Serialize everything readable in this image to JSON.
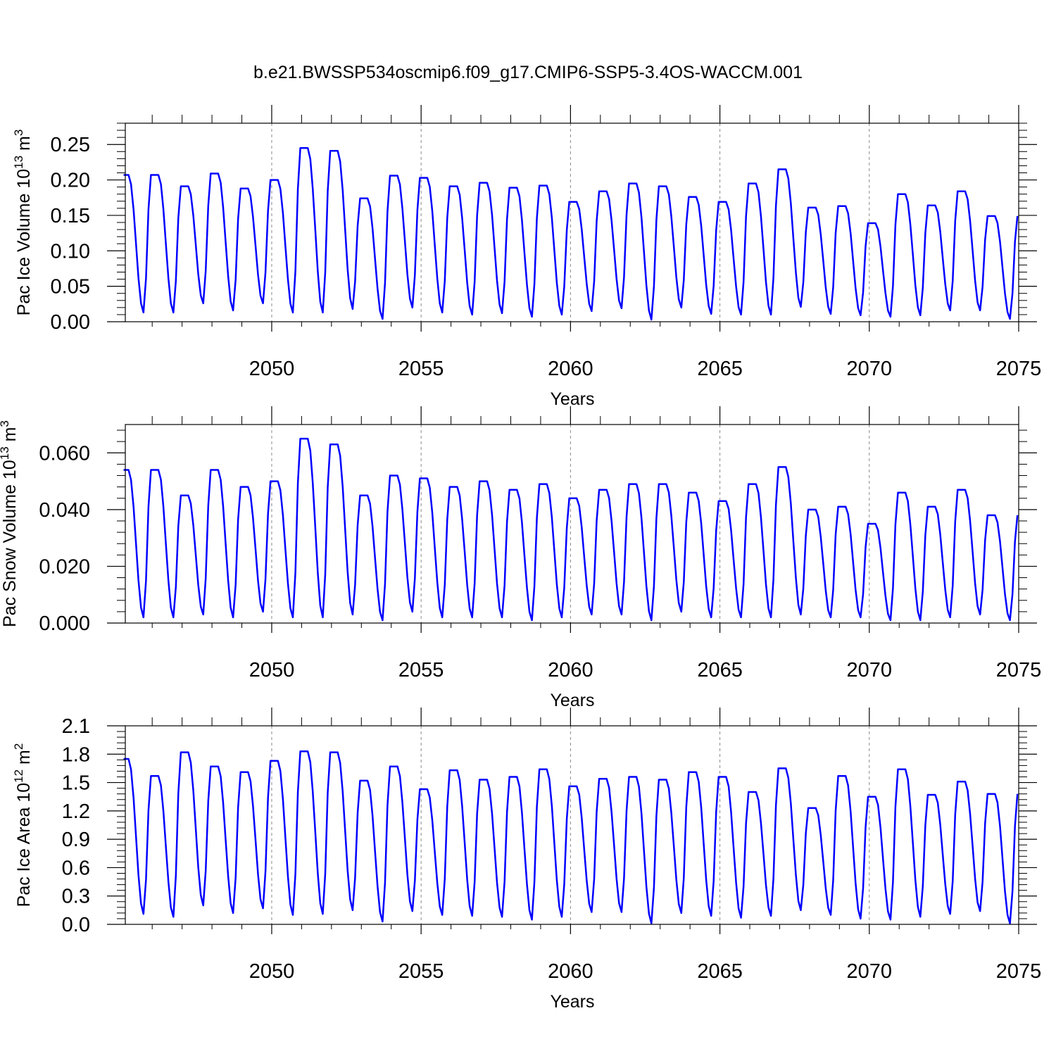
{
  "title": "b.e21.BWSSP534oscmip6.f09_g17.CMIP6-SSP5-3.4OS-WACCM.001",
  "chart_data": [
    {
      "type": "line",
      "ylabel": "Pac Ice Volume 10",
      "ylabel_exp": "13",
      "ylabel_unit": " m",
      "ylabel_unit_exp": "3",
      "xlabel": "Years",
      "xlim": [
        2045.1,
        2075.0
      ],
      "ylim": [
        0.0,
        0.28
      ],
      "yticks": [
        0.0,
        0.05,
        0.1,
        0.15,
        0.2,
        0.25
      ],
      "ytick_labels": [
        "0.00",
        "0.05",
        "0.10",
        "0.15",
        "0.20",
        "0.25"
      ],
      "xticks": [
        2050,
        2055,
        2060,
        2065,
        2070,
        2075
      ],
      "xtick_labels": [
        "2050",
        "2055",
        "2060",
        "2065",
        "2070",
        "2075"
      ],
      "grid": "dashed vertical at major x ticks",
      "color": "#0000ff",
      "series": [
        {
          "name": "Pac Ice Volume",
          "annual_max": [
            0.207,
            0.207,
            0.191,
            0.209,
            0.188,
            0.2,
            0.245,
            0.241,
            0.174,
            0.206,
            0.203,
            0.191,
            0.196,
            0.189,
            0.192,
            0.169,
            0.184,
            0.195,
            0.191,
            0.176,
            0.169,
            0.195,
            0.215,
            0.161,
            0.163,
            0.139,
            0.18,
            0.164,
            0.184,
            0.149
          ],
          "annual_min": [
            0.013,
            0.013,
            0.026,
            0.016,
            0.026,
            0.013,
            0.013,
            0.018,
            0.004,
            0.02,
            0.013,
            0.01,
            0.012,
            0.007,
            0.01,
            0.015,
            0.019,
            0.003,
            0.02,
            0.011,
            0.01,
            0.01,
            0.021,
            0.011,
            0.009,
            0.007,
            0.009,
            0.016,
            0.016,
            0.004
          ]
        }
      ]
    },
    {
      "type": "line",
      "ylabel": "Pac Snow Volume 10",
      "ylabel_exp": "13",
      "ylabel_unit": " m",
      "ylabel_unit_exp": "3",
      "xlabel": "Years",
      "xlim": [
        2045.1,
        2075.0
      ],
      "ylim": [
        0.0,
        0.07
      ],
      "yticks": [
        0.0,
        0.02,
        0.04,
        0.06
      ],
      "ytick_labels": [
        "0.000",
        "0.020",
        "0.040",
        "0.060"
      ],
      "xticks": [
        2050,
        2055,
        2060,
        2065,
        2070,
        2075
      ],
      "xtick_labels": [
        "2050",
        "2055",
        "2060",
        "2065",
        "2070",
        "2075"
      ],
      "grid": "dashed vertical at major x ticks",
      "color": "#0000ff",
      "series": [
        {
          "name": "Pac Snow Volume",
          "annual_max": [
            0.054,
            0.054,
            0.045,
            0.054,
            0.048,
            0.05,
            0.065,
            0.063,
            0.045,
            0.052,
            0.051,
            0.048,
            0.05,
            0.047,
            0.049,
            0.044,
            0.047,
            0.049,
            0.049,
            0.046,
            0.043,
            0.049,
            0.055,
            0.04,
            0.041,
            0.035,
            0.046,
            0.041,
            0.047,
            0.038
          ],
          "annual_min": [
            0.002,
            0.002,
            0.003,
            0.002,
            0.004,
            0.002,
            0.002,
            0.003,
            0.001,
            0.004,
            0.002,
            0.002,
            0.002,
            0.001,
            0.002,
            0.003,
            0.003,
            0.001,
            0.004,
            0.002,
            0.002,
            0.002,
            0.003,
            0.002,
            0.002,
            0.001,
            0.001,
            0.002,
            0.003,
            0.001
          ]
        }
      ]
    },
    {
      "type": "line",
      "ylabel": "Pac Ice Area 10",
      "ylabel_exp": "12",
      "ylabel_unit": " m",
      "ylabel_unit_exp": "2",
      "xlabel": "Years",
      "xlim": [
        2045.1,
        2075.0
      ],
      "ylim": [
        0.0,
        2.1
      ],
      "yticks": [
        0.0,
        0.3,
        0.6,
        0.9,
        1.2,
        1.5,
        1.8,
        2.1
      ],
      "ytick_labels": [
        "0.0",
        "0.3",
        "0.6",
        "0.9",
        "1.2",
        "1.5",
        "1.8",
        "2.1"
      ],
      "xticks": [
        2050,
        2055,
        2060,
        2065,
        2070,
        2075
      ],
      "xtick_labels": [
        "2050",
        "2055",
        "2060",
        "2065",
        "2070",
        "2075"
      ],
      "grid": "dashed vertical at major x ticks",
      "color": "#0000ff",
      "series": [
        {
          "name": "Pac Ice Area",
          "annual_max": [
            1.75,
            1.57,
            1.82,
            1.67,
            1.61,
            1.73,
            1.83,
            1.82,
            1.52,
            1.67,
            1.43,
            1.63,
            1.53,
            1.56,
            1.64,
            1.46,
            1.54,
            1.56,
            1.53,
            1.61,
            1.56,
            1.4,
            1.65,
            1.23,
            1.57,
            1.35,
            1.64,
            1.37,
            1.51,
            1.38
          ],
          "annual_min": [
            0.11,
            0.08,
            0.2,
            0.12,
            0.17,
            0.1,
            0.11,
            0.15,
            0.03,
            0.14,
            0.1,
            0.09,
            0.08,
            0.05,
            0.08,
            0.13,
            0.13,
            0.01,
            0.12,
            0.09,
            0.07,
            0.09,
            0.15,
            0.1,
            0.06,
            0.05,
            0.08,
            0.11,
            0.14,
            0.01
          ]
        }
      ]
    }
  ]
}
